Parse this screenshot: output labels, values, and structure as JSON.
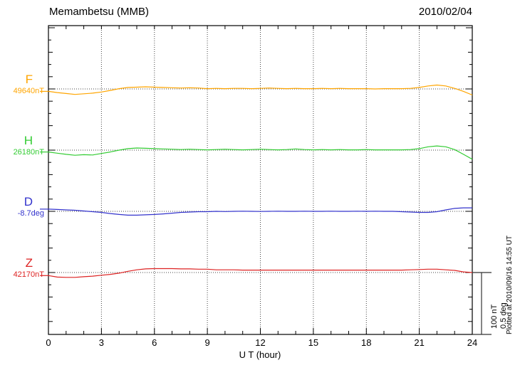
{
  "header": {
    "title": "Memambetsu (MMB)",
    "date": "2010/02/04"
  },
  "chart_data": {
    "type": "line",
    "title": "Memambetsu (MMB)",
    "date": "2010/02/04",
    "xlabel": "U T (hour)",
    "x_range": [
      0,
      24
    ],
    "x_ticks": [
      0,
      3,
      6,
      9,
      12,
      15,
      18,
      21,
      24
    ],
    "grid": "dotted vertical lines every 3 hours; dotted horizontal reference baseline per channel",
    "legend_position": "left margin channel labels",
    "scale_bar": {
      "nt_label": "100 nT",
      "deg_label": "0.5 deg"
    },
    "series": [
      {
        "name": "F",
        "reference_label": "49640nT",
        "unit": "nT",
        "color": "#FFA500",
        "step_hours": 0.5,
        "offsets": [
          -4,
          -6,
          -7.5,
          -9,
          -8,
          -7,
          -5,
          -2.5,
          0.5,
          2.5,
          3,
          3.5,
          3,
          2.5,
          2,
          1.5,
          2,
          1.5,
          0.5,
          1,
          0.5,
          1,
          1,
          0.5,
          1,
          1.5,
          1,
          0.5,
          1,
          0.5,
          0.5,
          1,
          0.5,
          1,
          0.5,
          0.5,
          0.5,
          0,
          0.5,
          0.5,
          0.5,
          1,
          2.5,
          5,
          6.5,
          5,
          1,
          -4,
          -10
        ]
      },
      {
        "name": "H",
        "reference_label": "26180nT",
        "unit": "nT",
        "color": "#33CC33",
        "step_hours": 0.5,
        "offsets": [
          -3,
          -5,
          -7,
          -8.5,
          -7.5,
          -8,
          -5.5,
          -3,
          0,
          2.5,
          3.5,
          3,
          2.5,
          2,
          1.5,
          1,
          1.5,
          1,
          0.5,
          1,
          1.5,
          1,
          0.5,
          1,
          1.5,
          1,
          0.5,
          1,
          2,
          1,
          0.5,
          1,
          0.5,
          1,
          0.5,
          0.5,
          1,
          0.5,
          0.5,
          0.5,
          0.5,
          1,
          2.5,
          5.5,
          7,
          5.5,
          1,
          -7,
          -15
        ]
      },
      {
        "name": "D",
        "reference_label": "-8.7deg",
        "unit": "deg",
        "color": "#3333CC",
        "step_hours": 0.5,
        "offsets": [
          0.018,
          0.015,
          0.012,
          0.009,
          0.003,
          -0.003,
          -0.009,
          -0.018,
          -0.026,
          -0.032,
          -0.032,
          -0.029,
          -0.026,
          -0.021,
          -0.015,
          -0.009,
          -0.006,
          -0.003,
          -0.003,
          0,
          -0.002,
          0,
          0.001,
          0,
          -0.001,
          0,
          0.001,
          0,
          0,
          0.001,
          0,
          0,
          0.001,
          0,
          0,
          0.001,
          0,
          0.001,
          0,
          0,
          -0.003,
          -0.006,
          -0.009,
          -0.009,
          -0.003,
          0.012,
          0.024,
          0.029,
          0.029
        ]
      },
      {
        "name": "Z",
        "reference_label": "42170nT",
        "unit": "nT",
        "color": "#DD2222",
        "step_hours": 0.5,
        "offsets": [
          -5,
          -7.5,
          -8,
          -8,
          -7,
          -6,
          -4.5,
          -3,
          -1,
          2,
          4.5,
          6,
          6.5,
          6.5,
          6.5,
          6,
          6,
          5.5,
          5.5,
          4.5,
          4.5,
          4.5,
          4,
          4,
          4,
          4,
          4,
          4,
          4,
          4,
          4,
          4,
          4,
          4,
          4,
          4,
          4,
          4,
          4,
          4,
          4,
          4.5,
          5,
          5.5,
          5.5,
          4.5,
          3.5,
          1,
          0
        ]
      }
    ]
  },
  "footer": {
    "plotted_at": "Plotted at 2010/09/16 14:55 UT"
  }
}
